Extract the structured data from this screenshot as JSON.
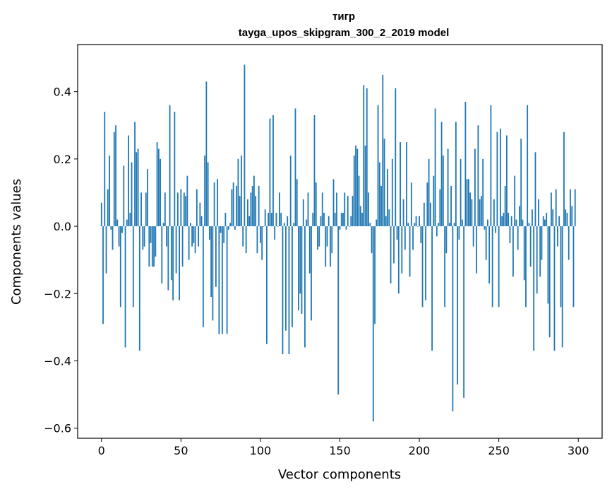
{
  "chart_data": {
    "type": "bar",
    "title": "тигр",
    "subtitle": "tayga_upos_skipgram_300_2_2019 model",
    "xlabel": "Vector components",
    "ylabel": "Components values",
    "xlim": [
      -15,
      315
    ],
    "ylim": [
      -0.63,
      0.54
    ],
    "x_ticks": [
      0,
      50,
      100,
      150,
      200,
      250,
      300
    ],
    "x_tick_labels": [
      "0",
      "50",
      "100",
      "150",
      "200",
      "250",
      "300"
    ],
    "y_ticks": [
      -0.6,
      -0.4,
      -0.2,
      0.0,
      0.2,
      0.4
    ],
    "y_tick_labels": [
      "−0.6",
      "−0.4",
      "−0.2",
      "0.0",
      "0.2",
      "0.4"
    ],
    "grid": false,
    "bar_color": "#1f77b4",
    "values": [
      0.07,
      -0.29,
      0.34,
      -0.14,
      0.11,
      0.21,
      -0.01,
      -0.07,
      0.28,
      0.3,
      0.02,
      -0.06,
      -0.24,
      -0.02,
      0.18,
      -0.36,
      0.02,
      0.27,
      0.04,
      0.19,
      -0.24,
      0.31,
      0.22,
      0.23,
      -0.37,
      0.1,
      -0.07,
      -0.06,
      0.1,
      0.17,
      -0.12,
      -0.05,
      -0.12,
      -0.12,
      -0.09,
      0.25,
      0.23,
      0.2,
      -0.17,
      0.01,
      0.1,
      -0.06,
      -0.19,
      0.36,
      -0.16,
      -0.22,
      0.34,
      -0.14,
      0.1,
      -0.22,
      0.11,
      -0.12,
      0.1,
      0.09,
      0.15,
      -0.1,
      0.01,
      -0.06,
      -0.05,
      -0.08,
      0.11,
      -0.06,
      0.07,
      0.03,
      -0.3,
      0.21,
      0.43,
      0.19,
      -0.04,
      -0.21,
      -0.28,
      0.13,
      -0.18,
      0.14,
      -0.32,
      -0.02,
      -0.32,
      -0.05,
      0.04,
      -0.32,
      -0.01,
      0.01,
      0.11,
      0.13,
      -0.01,
      0.12,
      0.2,
      0.09,
      0.21,
      -0.06,
      0.48,
      -0.08,
      0.08,
      0.03,
      0.1,
      0.12,
      0.15,
      0.09,
      -0.08,
      0.12,
      -0.05,
      -0.1,
      0.0,
      0.05,
      -0.35,
      0.04,
      0.32,
      0.04,
      0.33,
      -0.04,
      0.04,
      0.0,
      0.1,
      0.04,
      -0.38,
      0.01,
      -0.31,
      0.03,
      -0.38,
      0.21,
      -0.3,
      0.01,
      0.35,
      0.14,
      -0.25,
      -0.2,
      -0.26,
      0.08,
      -0.36,
      0.02,
      0.1,
      -0.14,
      -0.28,
      0.04,
      0.33,
      0.13,
      -0.07,
      -0.06,
      0.03,
      0.1,
      0.04,
      -0.12,
      -0.06,
      0.03,
      -0.12,
      -0.08,
      0.14,
      0.04,
      0.1,
      -0.5,
      -0.01,
      0.04,
      0.04,
      0.1,
      -0.01,
      0.09,
      0.0,
      0.03,
      0.09,
      0.21,
      0.24,
      0.23,
      0.15,
      0.06,
      0.04,
      0.42,
      0.24,
      0.41,
      0.1,
      0.01,
      -0.08,
      -0.58,
      -0.29,
      0.02,
      0.36,
      0.19,
      0.12,
      0.45,
      0.26,
      0.03,
      0.17,
      0.05,
      -0.17,
      0.2,
      -0.11,
      0.41,
      -0.04,
      -0.2,
      0.25,
      -0.14,
      0.08,
      -0.07,
      0.25,
      0.01,
      -0.15,
      0.13,
      -0.07,
      0.01,
      0.03,
      0.0,
      0.03,
      -0.05,
      -0.24,
      0.07,
      -0.22,
      0.13,
      0.2,
      0.07,
      -0.37,
      0.15,
      0.35,
      -0.03,
      0.01,
      0.11,
      0.31,
      0.21,
      -0.24,
      -0.08,
      0.23,
      0.01,
      0.12,
      -0.55,
      0.01,
      0.31,
      -0.47,
      -0.04,
      0.2,
      0.02,
      -0.51,
      0.37,
      0.14,
      0.14,
      0.1,
      0.08,
      -0.06,
      0.23,
      -0.14,
      0.3,
      0.08,
      0.09,
      0.2,
      -0.01,
      -0.1,
      0.02,
      -0.17,
      0.36,
      -0.24,
      0.08,
      -0.02,
      0.28,
      -0.24,
      0.29,
      0.03,
      0.04,
      0.12,
      0.27,
      0.04,
      -0.05,
      0.03,
      -0.15,
      0.15,
      0.02,
      -0.07,
      0.06,
      0.26,
      0.02,
      -0.16,
      -0.24,
      0.36,
      0.01,
      -0.12,
      0.05,
      -0.37,
      0.22,
      -0.2,
      0.08,
      -0.15,
      -0.1,
      0.03,
      0.02,
      0.04,
      -0.23,
      -0.33,
      0.1,
      0.05,
      -0.37,
      0.11,
      -0.06,
      0.03,
      -0.24,
      -0.36,
      0.28,
      0.05,
      0.04,
      -0.1,
      0.11,
      0.06,
      -0.24,
      0.11
    ]
  }
}
